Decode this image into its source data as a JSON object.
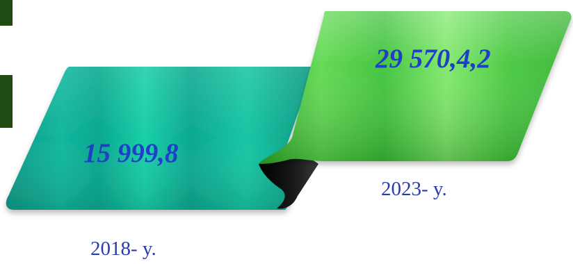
{
  "items": [
    {
      "value": "15 999,8",
      "year": "2018- y."
    },
    {
      "value": "29 570,4,2",
      "year": "2023- y."
    }
  ],
  "colors": {
    "value_text": "#1f3fc6",
    "year_text": "#2a3bb0",
    "ribbon_teal": "#14b59e",
    "ribbon_green": "#52d64a",
    "side_tab": "#1f4a12"
  }
}
